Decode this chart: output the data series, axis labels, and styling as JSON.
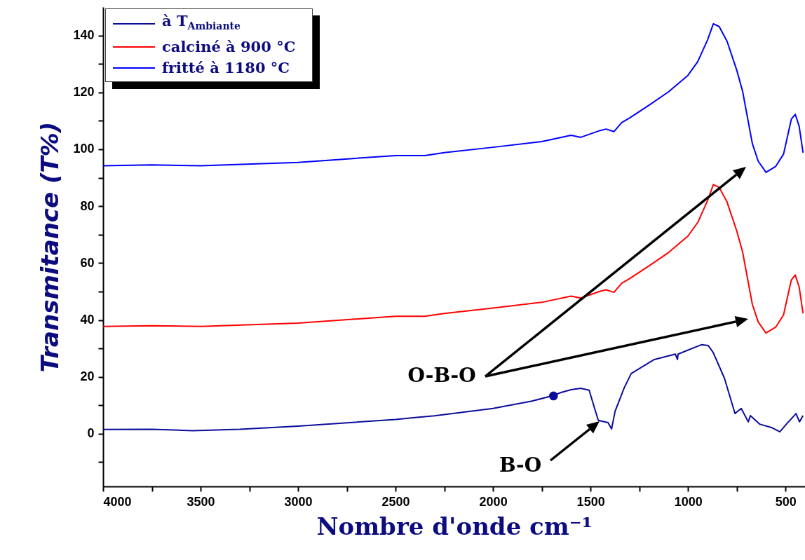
{
  "chart_data": {
    "type": "line",
    "xlabel": "Nombre d'onde cm⁻¹",
    "ylabel": "Transmitance (T%)",
    "xlim": [
      4000,
      400
    ],
    "xticks": [
      4000,
      {
        "value": 3750,
        "label": null
      },
      3500,
      {
        "value": 3250,
        "label": null
      },
      3000,
      {
        "value": 2750,
        "label": null
      },
      2500,
      {
        "value": 2250,
        "label": null
      },
      2000,
      {
        "value": 1750,
        "label": null
      },
      1500,
      {
        "value": 1250,
        "label": null
      },
      1000,
      {
        "value": 750,
        "label": null
      },
      500
    ],
    "ylim": [
      -18.5,
      150
    ],
    "yticks": [
      {
        "value": -10,
        "label": null
      },
      0,
      {
        "value": 10,
        "label": null
      },
      20,
      {
        "value": 30,
        "label": null
      },
      40,
      {
        "value": 50,
        "label": null
      },
      60,
      {
        "value": 70,
        "label": null
      },
      80,
      {
        "value": 90,
        "label": null
      },
      100,
      {
        "value": 110,
        "label": null
      },
      120,
      {
        "value": 130,
        "label": null
      },
      140
    ],
    "grid": false,
    "legend": "top left",
    "line_style": "solid",
    "marker": "none",
    "series": [
      {
        "name": "à T$_{Ambiante}$",
        "color": "#0c0c9c",
        "x": [
          4000,
          3750,
          3540,
          3300,
          3000,
          2500,
          2400,
          2300,
          2000,
          1800,
          1700,
          1651,
          1600,
          1550,
          1507,
          1482,
          1460,
          1410,
          1392,
          1374,
          1327,
          1291,
          1173,
          1065,
          1054,
          1051,
          932,
          896,
          871,
          813,
          759,
          727,
          691,
          680,
          633,
          572,
          529,
          489,
          446,
          428,
          410
        ],
        "values": [
          1.5,
          1.6,
          1.1,
          1.6,
          2.7,
          5.0,
          5.7,
          6.3,
          8.9,
          11.5,
          13.3,
          14.5,
          15.5,
          16.0,
          15.3,
          9.6,
          4.7,
          3.9,
          1.7,
          7.9,
          16.2,
          21.2,
          26.1,
          28.0,
          26.1,
          28.0,
          31.3,
          31.0,
          28.6,
          19.5,
          7.1,
          8.9,
          4.2,
          6.4,
          3.4,
          2.2,
          0.7,
          3.9,
          7.1,
          4.2,
          6.4
        ]
      },
      {
        "name": "calciné à 900 °C",
        "color": "#ff0000",
        "x": [
          4000,
          3750,
          3500,
          3000,
          2500,
          2350,
          2250,
          2000,
          1750,
          1600,
          1550,
          1450,
          1420,
          1380,
          1340,
          1300,
          1200,
          1100,
          1000,
          950,
          900,
          870,
          840,
          800,
          750,
          720,
          700,
          670,
          640,
          600,
          550,
          510,
          470,
          450,
          430,
          410
        ],
        "values": [
          37.7,
          38.0,
          37.7,
          38.9,
          41.3,
          41.3,
          42.3,
          44.2,
          46.2,
          48.4,
          47.7,
          50.1,
          50.6,
          49.7,
          52.9,
          54.5,
          59.0,
          63.7,
          69.5,
          74.3,
          81.9,
          87.6,
          86.6,
          81.5,
          71.3,
          63.9,
          56.5,
          45.5,
          39.3,
          35.4,
          37.5,
          41.8,
          54.1,
          55.8,
          51.6,
          42.3
        ]
      },
      {
        "name": "fritté à 1180 °C",
        "color": "#0000ff",
        "x": [
          4000,
          3750,
          3500,
          3000,
          2500,
          2350,
          2250,
          2000,
          1750,
          1600,
          1550,
          1450,
          1420,
          1380,
          1340,
          1300,
          1200,
          1100,
          1000,
          950,
          900,
          870,
          840,
          800,
          750,
          720,
          700,
          670,
          640,
          600,
          550,
          510,
          470,
          450,
          430,
          410
        ],
        "values": [
          94.2,
          94.5,
          94.2,
          95.4,
          97.8,
          97.8,
          98.8,
          100.7,
          102.7,
          104.9,
          104.2,
          106.6,
          107.1,
          106.2,
          109.4,
          111.0,
          115.5,
          120.2,
          126.0,
          130.8,
          138.4,
          144.1,
          143.1,
          138.0,
          127.8,
          120.4,
          113.0,
          102.0,
          95.8,
          91.9,
          94.0,
          98.3,
          110.6,
          112.3,
          108.1,
          98.8
        ]
      },
      {
        "type": "scatter",
        "color": "#0c0c9c",
        "marker": "circle",
        "x": [
          1690
        ],
        "values": [
          13.3
        ]
      }
    ],
    "annotations": [
      "O-B-O",
      "B-O"
    ]
  }
}
